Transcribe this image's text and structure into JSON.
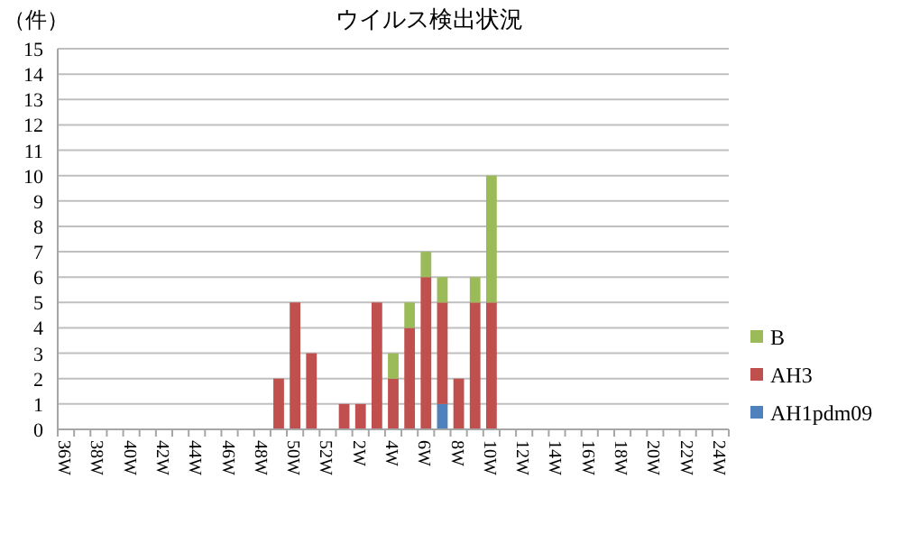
{
  "chart_data": {
    "type": "bar",
    "title": "ウイルス検出状況",
    "ylabel": "（件）",
    "categories": [
      "36W",
      null,
      "38W",
      null,
      "40W",
      null,
      "42W",
      null,
      "44W",
      null,
      "46W",
      null,
      "48W",
      null,
      "50W",
      null,
      "52W",
      null,
      "2W",
      null,
      "4W",
      null,
      "6W",
      null,
      "8W",
      null,
      "10W",
      null,
      "12W",
      null,
      "14W",
      null,
      "16W",
      null,
      "18W",
      null,
      "20W",
      null,
      "22W",
      null,
      "24W"
    ],
    "stacked": true,
    "series": [
      {
        "name": "AH1pdm09",
        "color": "#4f81bd",
        "values": [
          0,
          0,
          0,
          0,
          0,
          0,
          0,
          0,
          0,
          0,
          0,
          0,
          0,
          0,
          0,
          0,
          0,
          0,
          0,
          0,
          0,
          0,
          0,
          1,
          0,
          0,
          0,
          0,
          0,
          0,
          0,
          0,
          0,
          0,
          0,
          0,
          0,
          0,
          0,
          0,
          0
        ]
      },
      {
        "name": "AH3",
        "color": "#c0504d",
        "values": [
          0,
          0,
          0,
          0,
          0,
          0,
          0,
          0,
          0,
          0,
          0,
          0,
          0,
          2,
          5,
          3,
          0,
          1,
          1,
          5,
          2,
          4,
          6,
          4,
          2,
          5,
          5,
          0,
          0,
          0,
          0,
          0,
          0,
          0,
          0,
          0,
          0,
          0,
          0,
          0,
          0
        ]
      },
      {
        "name": "B",
        "color": "#9bbb59",
        "values": [
          0,
          0,
          0,
          0,
          0,
          0,
          0,
          0,
          0,
          0,
          0,
          0,
          0,
          0,
          0,
          0,
          0,
          0,
          0,
          0,
          1,
          1,
          1,
          1,
          0,
          1,
          5,
          0,
          0,
          0,
          0,
          0,
          0,
          0,
          0,
          0,
          0,
          0,
          0,
          0,
          0
        ]
      }
    ],
    "ylim": [
      0,
      15
    ],
    "yticks": [
      0,
      1,
      2,
      3,
      4,
      5,
      6,
      7,
      8,
      9,
      10,
      11,
      12,
      13,
      14,
      15
    ],
    "grid": "y",
    "legend": "right"
  }
}
